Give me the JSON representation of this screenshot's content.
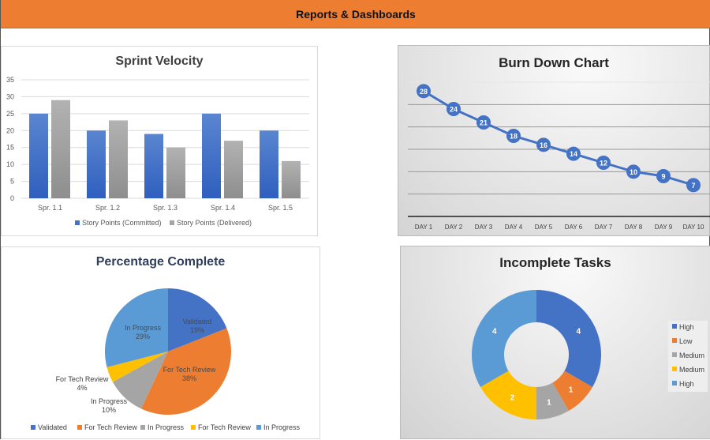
{
  "header": {
    "title": "Reports & Dashboards"
  },
  "colors": {
    "header": "#ed7d31",
    "blue": "#4472c4",
    "orange": "#ed7d31",
    "gray": "#a5a5a5",
    "yellow": "#ffc000",
    "lightblue": "#5b9bd5"
  },
  "chart_data": [
    {
      "type": "bar",
      "title": "Sprint Velocity",
      "categories": [
        "Spr. 1.1",
        "Spr. 1.2",
        "Spr. 1.3",
        "Spr. 1.4",
        "Spr. 1.5"
      ],
      "series": [
        {
          "name": "Story Points (Committed)",
          "values": [
            25,
            20,
            19,
            25,
            20
          ],
          "color": "#4472c4"
        },
        {
          "name": "Story Points (Delivered)",
          "values": [
            29,
            23,
            15,
            17,
            11
          ],
          "color": "#a5a5a5"
        }
      ],
      "ylim": [
        0,
        35
      ],
      "yticks": [
        "0",
        "5",
        "10",
        "15",
        "20",
        "25",
        "30",
        "35"
      ],
      "grid": true,
      "legend": "bottom"
    },
    {
      "type": "line",
      "title": "Burn Down Chart",
      "categories": [
        "DAY 1",
        "DAY 2",
        "DAY 3",
        "DAY 4",
        "DAY 5",
        "DAY 6",
        "DAY 7",
        "DAY 8",
        "DAY 9",
        "DAY 10"
      ],
      "values": [
        28,
        24,
        21,
        18,
        16,
        14,
        12,
        10,
        9,
        7
      ],
      "ylim": [
        0,
        30
      ],
      "grid": true,
      "data_labels": true,
      "color": "#4472c4"
    },
    {
      "type": "pie",
      "title": "Percentage Complete",
      "slices": [
        {
          "label": "Validated",
          "value": 19,
          "text": "19%",
          "color": "#4472c4"
        },
        {
          "label": "For Tech Review",
          "value": 38,
          "text": "38%",
          "color": "#ed7d31"
        },
        {
          "label": "In Progress",
          "value": 10,
          "text": "10%",
          "color": "#a5a5a5"
        },
        {
          "label": "For Tech Review",
          "value": 4,
          "text": "4%",
          "color": "#ffc000"
        },
        {
          "label": "In Progress",
          "value": 29,
          "text": "29%",
          "color": "#5b9bd5"
        }
      ],
      "legend": "bottom"
    },
    {
      "type": "pie",
      "subtype": "donut",
      "title": "Incomplete Tasks",
      "slices": [
        {
          "label": "High",
          "value": 4,
          "color": "#4472c4"
        },
        {
          "label": "Low",
          "value": 1,
          "color": "#ed7d31"
        },
        {
          "label": "Medium",
          "value": 1,
          "color": "#a5a5a5"
        },
        {
          "label": "Medium",
          "value": 2,
          "color": "#ffc000"
        },
        {
          "label": "High",
          "value": 4,
          "color": "#5b9bd5"
        }
      ],
      "legend": "right"
    }
  ]
}
